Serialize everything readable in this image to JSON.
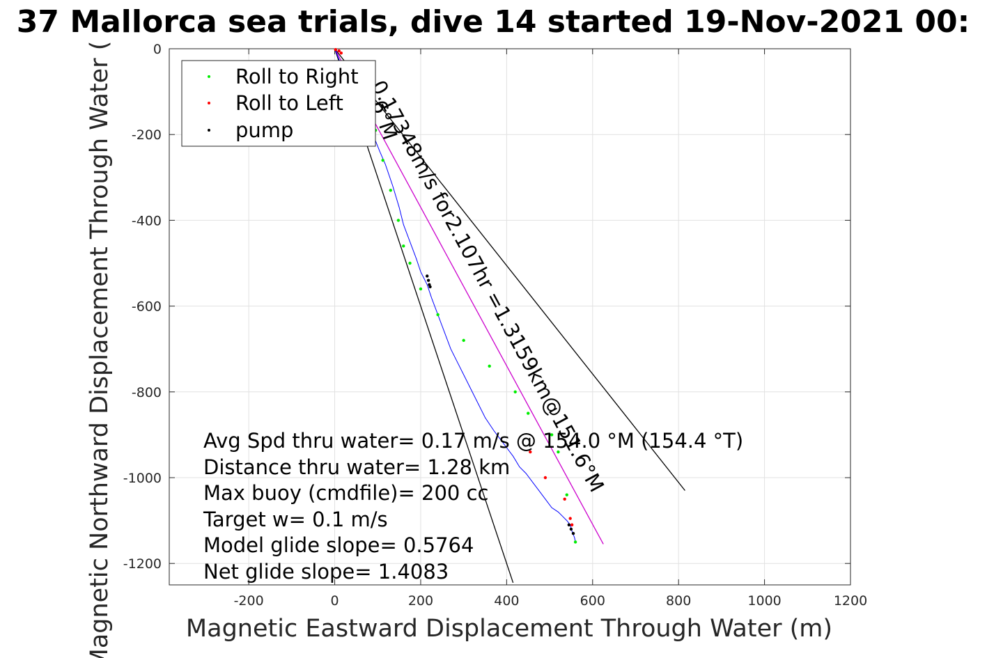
{
  "chart_data": {
    "type": "line",
    "title": "37 Mallorca sea trials, dive 14 started 19-Nov-2021 00:",
    "xlabel": "Magnetic Eastward Displacement Through Water (m)",
    "ylabel": "Magnetic Northward Displacement Through Water (",
    "xlim": [
      -385,
      1200
    ],
    "ylim": [
      -1250,
      0
    ],
    "xticks": [
      -200,
      0,
      200,
      400,
      600,
      800,
      1000,
      1200
    ],
    "yticks": [
      0,
      -200,
      -400,
      -600,
      -800,
      -1000,
      -1200
    ],
    "grid": true,
    "legend": {
      "placement": "top-left",
      "entries": [
        {
          "label": "Roll to Right",
          "color": "#00ee00"
        },
        {
          "label": "Roll to Left",
          "color": "#ff0000"
        },
        {
          "label": "pump",
          "color": "#000000"
        }
      ]
    },
    "track": {
      "color": "#0000ff",
      "x": [
        0,
        8,
        20,
        40,
        60,
        80,
        95,
        105,
        118,
        135,
        150,
        160,
        175,
        190,
        200,
        215,
        225,
        240,
        255,
        270,
        285,
        300,
        315,
        330,
        350,
        370,
        385,
        400,
        415,
        430,
        445,
        460,
        475,
        490,
        505,
        520,
        530,
        540,
        548,
        552,
        558,
        560
      ],
      "y": [
        0,
        -20,
        -50,
        -90,
        -140,
        -180,
        -215,
        -240,
        -270,
        -320,
        -370,
        -410,
        -450,
        -490,
        -520,
        -550,
        -580,
        -620,
        -660,
        -700,
        -730,
        -760,
        -790,
        -820,
        -860,
        -890,
        -910,
        -930,
        -950,
        -975,
        -990,
        -1010,
        -1030,
        -1050,
        -1070,
        -1080,
        -1090,
        -1100,
        -1110,
        -1125,
        -1140,
        -1150
      ]
    },
    "roll_right_points": {
      "x": [
        95,
        112,
        130,
        148,
        160,
        175,
        200,
        240,
        300,
        360,
        420,
        450,
        505,
        520,
        540,
        560
      ],
      "y": [
        -190,
        -260,
        -330,
        -400,
        -460,
        -500,
        -560,
        -620,
        -680,
        -740,
        -800,
        -850,
        -900,
        -940,
        -1040,
        -1150
      ]
    },
    "roll_left_points": {
      "x": [
        2,
        10,
        15,
        455,
        490,
        535,
        548,
        552
      ],
      "y": [
        -2,
        -5,
        -10,
        -940,
        -1000,
        -1050,
        -1095,
        -1110
      ]
    },
    "pump_points": {
      "x": [
        215,
        218,
        220,
        222,
        545,
        550,
        555
      ],
      "y": [
        -530,
        -540,
        -550,
        -555,
        -1110,
        -1120,
        -1130
      ]
    },
    "mean_heading_line": {
      "color": "#cc00cc",
      "label": "0.17348m/s for2.107hr =1.3159km@151.6°M",
      "x": [
        0,
        625
      ],
      "y": [
        0,
        -1155
      ]
    },
    "envelope_line_1": {
      "color": "#000000",
      "label": "6°M",
      "x": [
        0,
        415
      ],
      "y": [
        0,
        -1245
      ]
    },
    "envelope_line_2": {
      "color": "#000000",
      "label": "",
      "x": [
        0,
        815
      ],
      "y": [
        0,
        -1030
      ]
    },
    "annotations": [
      "Avg Spd thru water=  0.17 m/s @ 154.0 °M (154.4 °T)",
      "Distance thru water=  1.28 km",
      "Max buoy (cmdfile)= 200 cc",
      "Target w= 0.1 m/s",
      "Model glide slope= 0.5764",
      "Net glide slope= 1.4083"
    ]
  }
}
